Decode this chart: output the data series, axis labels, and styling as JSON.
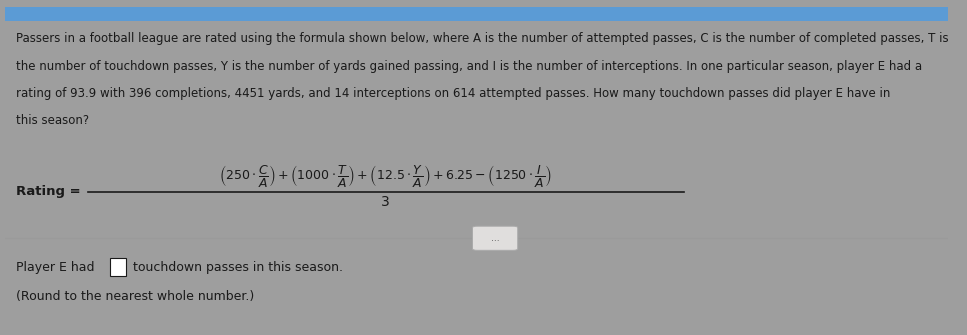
{
  "bg_outer": "#9e9e9e",
  "bg_panel": "#f0eeeb",
  "text_color": "#1a1a1a",
  "blue_bar_color": "#5b9bd5",
  "divider_color": "#9a9a9a",
  "btn_color": "#e0dedd",
  "btn_edge": "#aaaaaa",
  "para_line1": "Passers in a football league are rated using the formula shown below, where A is the number of attempted passes, C is the number of completed passes, T is",
  "para_line2": "the number of touchdown passes, Y is the number of yards gained passing, and I is the number of interceptions. In one particular season, player E had a",
  "para_line3": "rating of 93.9 with 396 completions, 4451 yards, and 14 interceptions on 614 attempted passes. How many touchdown passes did player E have in",
  "para_line4": "this season?",
  "rating_label": "Rating =",
  "denominator": "3",
  "bottom_pre": "Player E had ",
  "bottom_post": " touchdown passes in this season.",
  "bottom_line2": "(Round to the nearest whole number.)"
}
